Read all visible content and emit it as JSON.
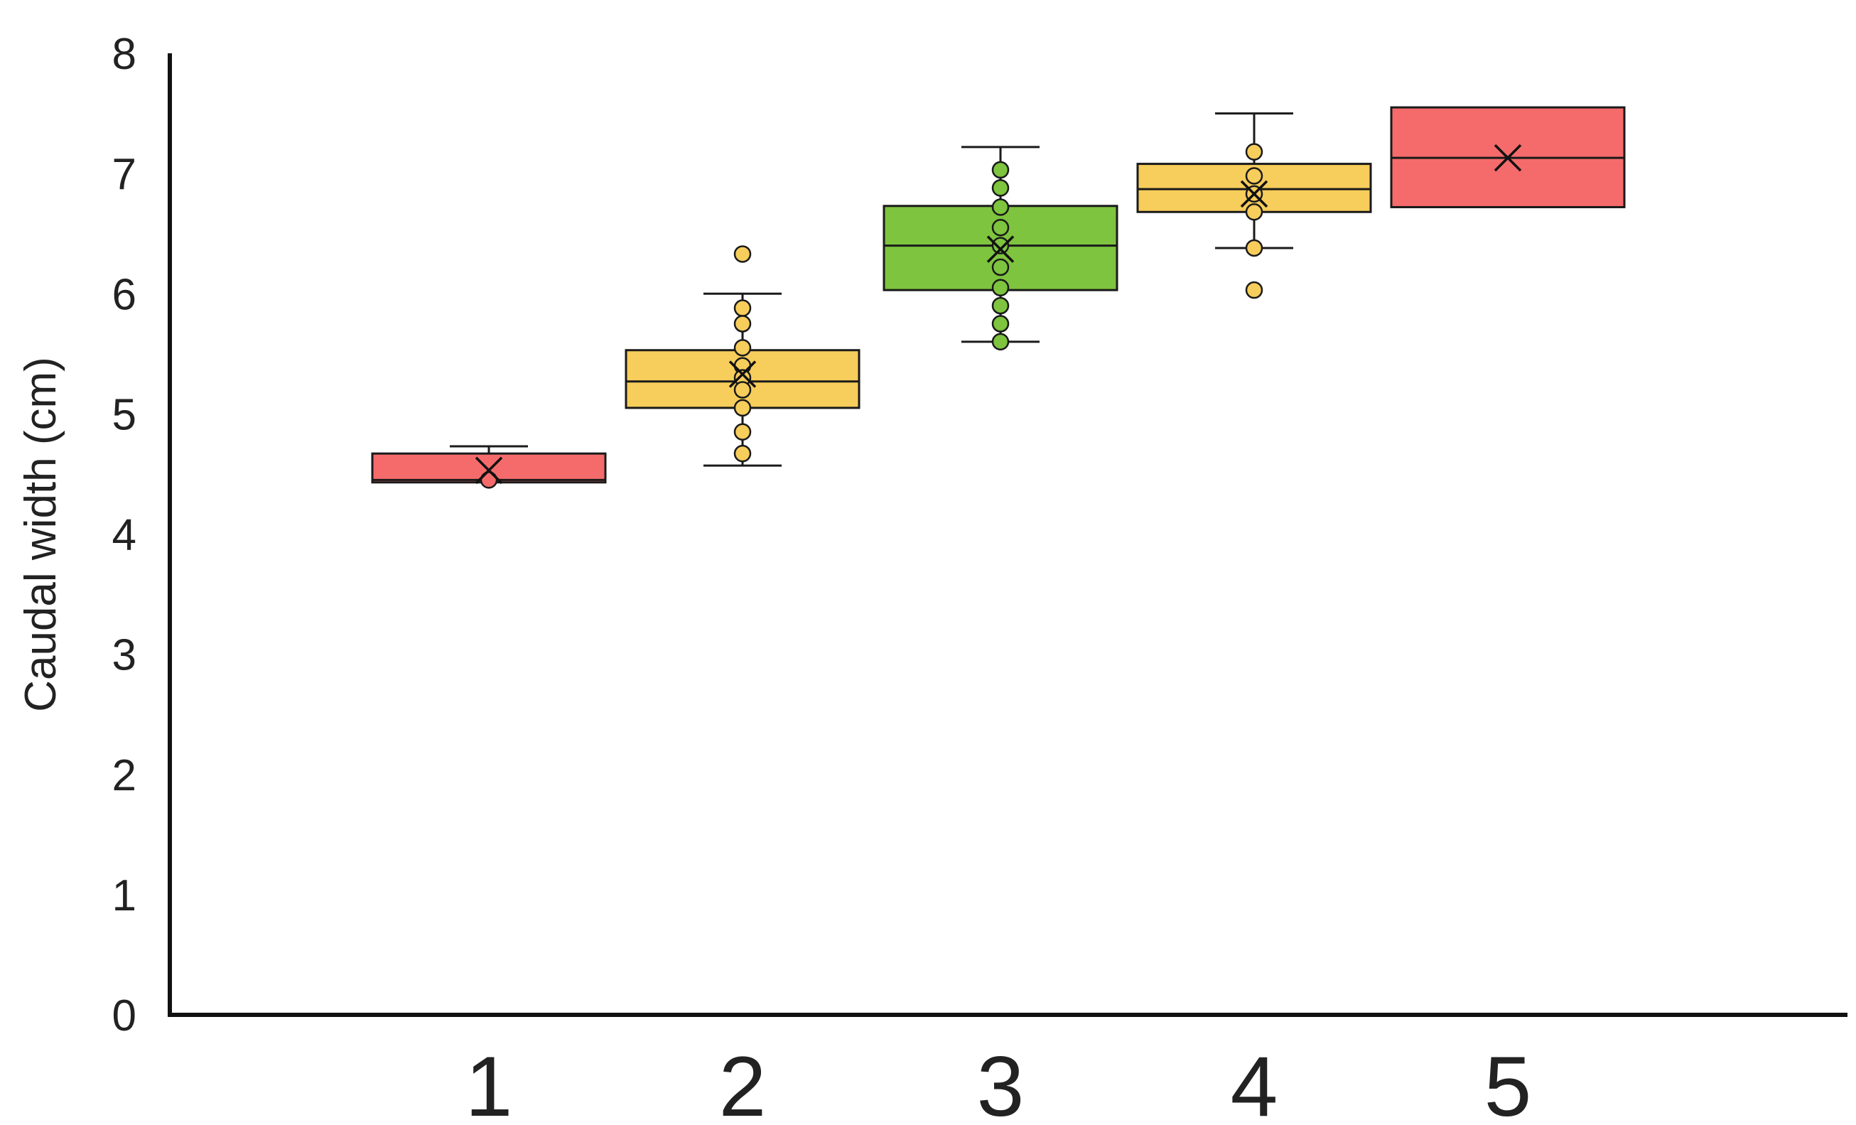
{
  "chart_data": {
    "type": "box",
    "title": "",
    "xlabel": "",
    "ylabel": "Caudal width (cm)",
    "ylim": [
      0,
      8
    ],
    "yticks": [
      "0",
      "1",
      "2",
      "3",
      "4",
      "5",
      "6",
      "7",
      "8"
    ],
    "categories": [
      "1",
      "2",
      "3",
      "4",
      "5"
    ],
    "grid": false,
    "legend": "none",
    "boxes": [
      {
        "category": "1",
        "color": "#f56b6b",
        "q1": 4.43,
        "median": 4.45,
        "q3": 4.67,
        "whisker_low": 4.43,
        "whisker_high": 4.73,
        "mean": 4.53,
        "points": [
          4.45
        ]
      },
      {
        "category": "2",
        "color": "#f7cd5b",
        "q1": 5.05,
        "median": 5.27,
        "q3": 5.53,
        "whisker_low": 4.57,
        "whisker_high": 6.0,
        "mean": 5.33,
        "points": [
          6.33,
          5.88,
          5.75,
          5.55,
          5.4,
          5.3,
          5.2,
          5.05,
          4.85,
          4.67
        ]
      },
      {
        "category": "3",
        "color": "#7ec43e",
        "q1": 6.03,
        "median": 6.4,
        "q3": 6.73,
        "whisker_low": 5.6,
        "whisker_high": 7.22,
        "mean": 6.37,
        "points": [
          7.03,
          6.88,
          6.72,
          6.55,
          6.4,
          6.22,
          6.05,
          5.9,
          5.75,
          5.6
        ]
      },
      {
        "category": "4",
        "color": "#f7cd5b",
        "q1": 6.68,
        "median": 6.87,
        "q3": 7.08,
        "whisker_low": 6.38,
        "whisker_high": 7.5,
        "mean": 6.83,
        "points": [
          7.18,
          6.98,
          6.83,
          6.68,
          6.38,
          6.03
        ]
      },
      {
        "category": "5",
        "color": "#f56b6b",
        "q1": 6.72,
        "median": 7.13,
        "q3": 7.55,
        "whisker_low": 6.72,
        "whisker_high": 7.55,
        "mean": 7.13,
        "points": []
      }
    ]
  }
}
